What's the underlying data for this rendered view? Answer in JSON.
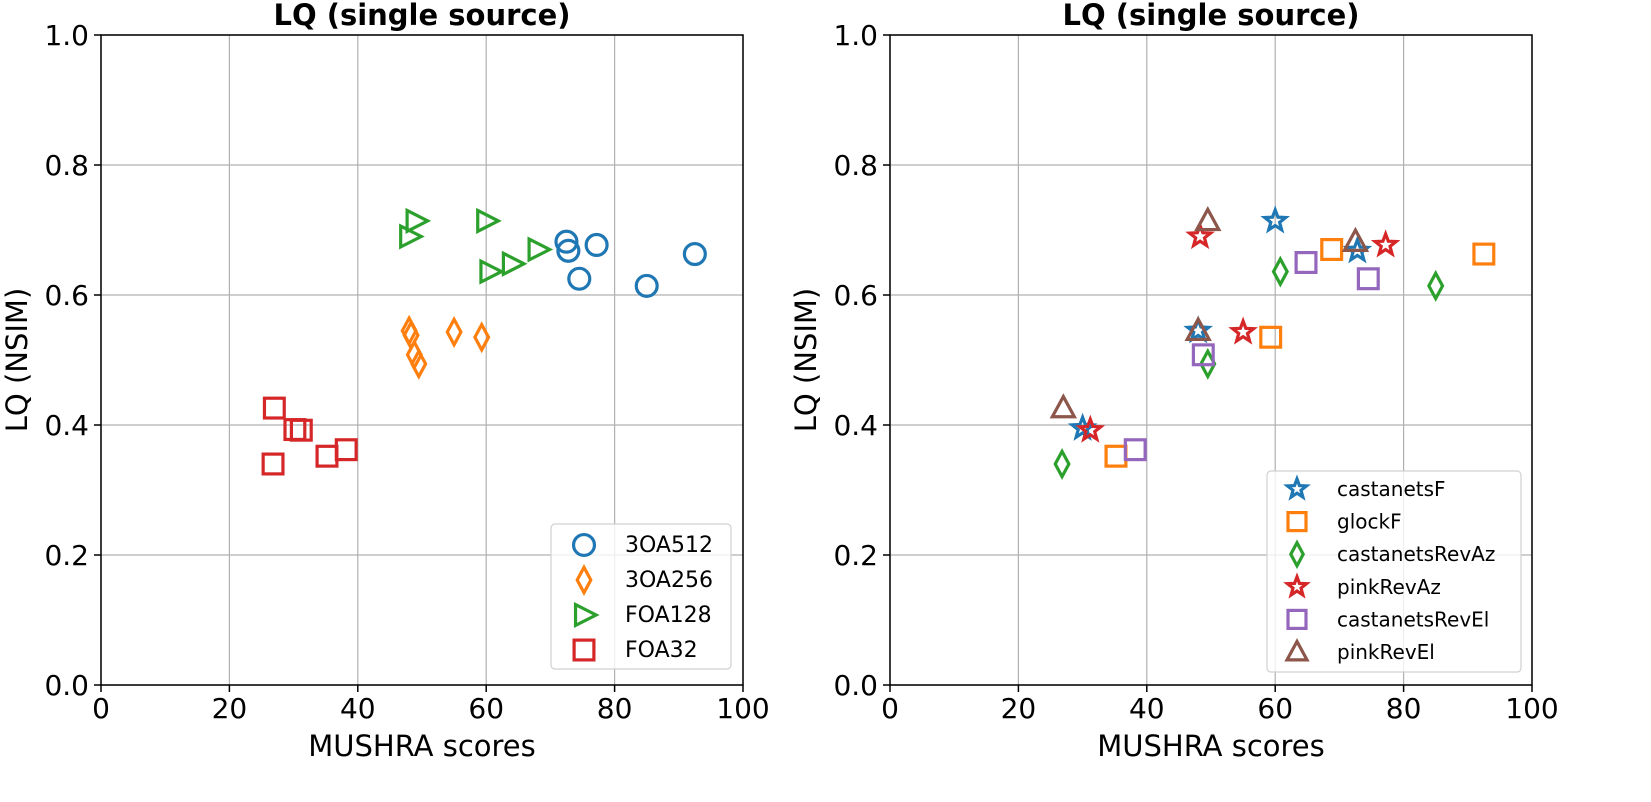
{
  "chart_data": [
    {
      "type": "scatter",
      "title": "LQ (single source)",
      "xlabel": "MUSHRA scores",
      "ylabel": "LQ (NSIM)",
      "xlim": [
        0,
        100
      ],
      "ylim": [
        0.0,
        1.0
      ],
      "xticks": [
        "0",
        "20",
        "40",
        "60",
        "80",
        "100"
      ],
      "yticks": [
        "0.0",
        "0.2",
        "0.4",
        "0.6",
        "0.8",
        "1.0"
      ],
      "grid": true,
      "legend_position": "lower-right",
      "series": [
        {
          "name": "3OA512",
          "marker": "circle",
          "color": "#1f77b4",
          "points": [
            [
              72.5,
              0.682
            ],
            [
              72.8,
              0.668
            ],
            [
              77.2,
              0.677
            ],
            [
              74.5,
              0.625
            ],
            [
              85.0,
              0.614
            ],
            [
              92.5,
              0.663
            ]
          ]
        },
        {
          "name": "3OA256",
          "marker": "diamond",
          "color": "#ff7f0e",
          "points": [
            [
              48.0,
              0.545
            ],
            [
              48.3,
              0.538
            ],
            [
              48.8,
              0.508
            ],
            [
              49.5,
              0.494
            ],
            [
              55.0,
              0.543
            ],
            [
              59.3,
              0.535
            ]
          ]
        },
        {
          "name": "FOA128",
          "marker": "triangle-right",
          "color": "#2ca02c",
          "points": [
            [
              48.0,
              0.69
            ],
            [
              49.0,
              0.714
            ],
            [
              60.0,
              0.714
            ],
            [
              60.5,
              0.636
            ],
            [
              64.0,
              0.648
            ],
            [
              68.0,
              0.67
            ]
          ]
        },
        {
          "name": "FOA32",
          "marker": "square",
          "color": "#d62728",
          "points": [
            [
              27.0,
              0.426
            ],
            [
              26.8,
              0.34
            ],
            [
              30.2,
              0.393
            ],
            [
              31.2,
              0.392
            ],
            [
              35.2,
              0.352
            ],
            [
              38.2,
              0.362
            ]
          ]
        }
      ]
    },
    {
      "type": "scatter",
      "title": "LQ (single source)",
      "xlabel": "MUSHRA scores",
      "ylabel": "LQ (NSIM)",
      "xlim": [
        0,
        100
      ],
      "ylim": [
        0.0,
        1.0
      ],
      "xticks": [
        "0",
        "20",
        "40",
        "60",
        "80",
        "100"
      ],
      "yticks": [
        "0.0",
        "0.2",
        "0.4",
        "0.6",
        "0.8",
        "1.0"
      ],
      "grid": true,
      "legend_position": "lower-right",
      "series": [
        {
          "name": "castanetsF",
          "marker": "star",
          "color": "#1f77b4",
          "points": [
            [
              30.0,
              0.395
            ],
            [
              48.0,
              0.545
            ],
            [
              60.0,
              0.714
            ],
            [
              72.8,
              0.668
            ]
          ]
        },
        {
          "name": "glockF",
          "marker": "square",
          "color": "#ff7f0e",
          "points": [
            [
              35.2,
              0.352
            ],
            [
              59.3,
              0.535
            ],
            [
              68.8,
              0.67
            ],
            [
              92.5,
              0.663
            ]
          ]
        },
        {
          "name": "castanetsRevAz",
          "marker": "diamond",
          "color": "#2ca02c",
          "points": [
            [
              26.8,
              0.34
            ],
            [
              49.5,
              0.494
            ],
            [
              60.8,
              0.636
            ],
            [
              85.0,
              0.614
            ]
          ]
        },
        {
          "name": "pinkRevAz",
          "marker": "star",
          "color": "#d62728",
          "points": [
            [
              31.2,
              0.392
            ],
            [
              48.3,
              0.69
            ],
            [
              55.0,
              0.543
            ],
            [
              77.2,
              0.677
            ]
          ]
        },
        {
          "name": "castanetsRevEl",
          "marker": "square",
          "color": "#9467bd",
          "points": [
            [
              38.2,
              0.362
            ],
            [
              48.8,
              0.508
            ],
            [
              64.8,
              0.65
            ],
            [
              74.5,
              0.625
            ]
          ]
        },
        {
          "name": "pinkRevEl",
          "marker": "triangle-up",
          "color": "#8c564b",
          "points": [
            [
              27.0,
              0.426
            ],
            [
              48.0,
              0.545
            ],
            [
              49.5,
              0.714
            ],
            [
              72.5,
              0.682
            ]
          ]
        }
      ]
    }
  ]
}
